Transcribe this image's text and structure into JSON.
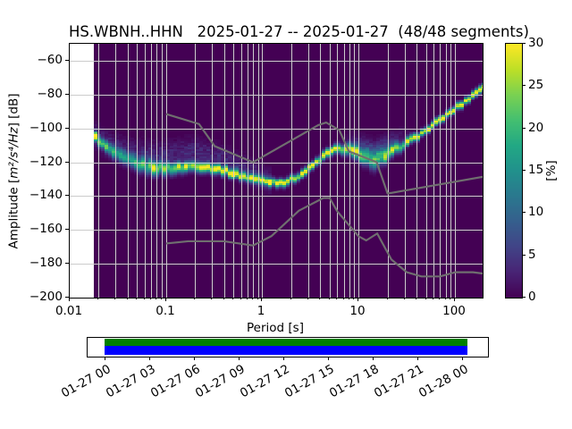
{
  "title": "HS.WBNH..HHN   2025-01-27 -- 2025-01-27  (48/48 segments)",
  "axes": {
    "xlabel": "Period [s]",
    "ylabel_pre": "Amplitude [",
    "ylabel_math": "m²/s⁴/Hz",
    "ylabel_post": "] [dB]",
    "ylabel_full": "Amplitude [m²/s⁴/Hz] [dB]",
    "x_ticks": [
      {
        "label": "0.01",
        "period_s": 0.01
      },
      {
        "label": "0.1",
        "period_s": 0.1
      },
      {
        "label": "1",
        "period_s": 1
      },
      {
        "label": "10",
        "period_s": 10
      },
      {
        "label": "100",
        "period_s": 100
      }
    ],
    "y_ticks": [
      {
        "label": "−60",
        "db": -60
      },
      {
        "label": "−80",
        "db": -80
      },
      {
        "label": "−100",
        "db": -100
      },
      {
        "label": "−120",
        "db": -120
      },
      {
        "label": "−140",
        "db": -140
      },
      {
        "label": "−160",
        "db": -160
      },
      {
        "label": "−180",
        "db": -180
      },
      {
        "label": "−200",
        "db": -200
      }
    ]
  },
  "colorbar": {
    "label": "[%]",
    "min": 0,
    "max": 30,
    "ticks": [
      {
        "label": "0",
        "value": 0
      },
      {
        "label": "5",
        "value": 5
      },
      {
        "label": "10",
        "value": 10
      },
      {
        "label": "15",
        "value": 15
      },
      {
        "label": "20",
        "value": 20
      },
      {
        "label": "25",
        "value": 25
      },
      {
        "label": "30",
        "value": 30
      }
    ]
  },
  "timeline": {
    "tick_labels": [
      "01-27 00",
      "01-27 03",
      "01-27 06",
      "01-27 09",
      "01-27 12",
      "01-27 15",
      "01-27 18",
      "01-27 21",
      "01-28 00"
    ],
    "data_bar_color_top": "#008000",
    "data_bar_color_bottom": "#0000ff"
  },
  "colors": {
    "background": "#ffffff",
    "hist_background": "#440154",
    "grid": "#cccccc",
    "noise_model_line": "#6f6f6f",
    "spine": "#000000",
    "viridis_stops": [
      "#440154",
      "#482475",
      "#414487",
      "#355f8d",
      "#2a788e",
      "#21918c",
      "#22a884",
      "#44bf70",
      "#7ad151",
      "#bddf26",
      "#fde725"
    ]
  },
  "chart_data": {
    "type": "heatmap",
    "title": "HS.WBNH..HHN   2025-01-27 -- 2025-01-27  (48/48 segments)",
    "xlabel": "Period [s]",
    "ylabel": "Amplitude [m²/s⁴/Hz] [dB]",
    "colorbar_label": "[%]",
    "x_axis": {
      "scale": "log",
      "range_s": [
        0.01,
        194
      ],
      "grid": true
    },
    "y_axis": {
      "range_db": [
        -200,
        -50
      ],
      "tick_step": 20,
      "grid": true
    },
    "colorbar_range_percent": [
      0,
      30
    ],
    "histogram": {
      "period_min_s": 0.0178,
      "period_max_s": 194,
      "period_bin_octaves": 0.125,
      "db_bin": 1,
      "mode_curve_period_db": [
        [
          0.018,
          -104.5
        ],
        [
          0.022,
          -109.5
        ],
        [
          0.026,
          -112.5
        ],
        [
          0.031,
          -115.5
        ],
        [
          0.039,
          -118.5
        ],
        [
          0.048,
          -120.5
        ],
        [
          0.063,
          -122.5
        ],
        [
          0.089,
          -123.5
        ],
        [
          0.126,
          -123.5
        ],
        [
          0.2,
          -122.0
        ],
        [
          0.3,
          -123.5
        ],
        [
          0.38,
          -124.5
        ],
        [
          0.56,
          -127.5
        ],
        [
          0.78,
          -129.5
        ],
        [
          1.12,
          -131.5
        ],
        [
          1.6,
          -132.0
        ],
        [
          2.1,
          -130.0
        ],
        [
          2.8,
          -125.5
        ],
        [
          3.8,
          -119.5
        ],
        [
          4.8,
          -114.5
        ],
        [
          6.0,
          -112.0
        ],
        [
          7.9,
          -112.5
        ],
        [
          10.0,
          -115.0
        ],
        [
          12.6,
          -118.0
        ],
        [
          14.8,
          -120.0
        ],
        [
          19.1,
          -116.5
        ],
        [
          23.4,
          -113.0
        ],
        [
          31.0,
          -108.5
        ],
        [
          41.7,
          -104.3
        ],
        [
          55.0,
          -99.8
        ],
        [
          72.4,
          -94.5
        ],
        [
          97.7,
          -89.2
        ],
        [
          128.8,
          -83.9
        ],
        [
          158.5,
          -79.5
        ],
        [
          195.0,
          -75.5
        ]
      ],
      "peak_percent_period": [
        [
          0.018,
          22
        ],
        [
          0.025,
          18
        ],
        [
          0.035,
          15
        ],
        [
          0.05,
          18
        ],
        [
          0.07,
          22
        ],
        [
          0.1,
          20
        ],
        [
          0.16,
          28
        ],
        [
          0.25,
          26
        ],
        [
          0.35,
          28
        ],
        [
          0.5,
          30
        ],
        [
          1.0,
          30
        ],
        [
          2.0,
          30
        ],
        [
          4.0,
          29
        ],
        [
          6.3,
          28
        ],
        [
          10,
          22
        ],
        [
          12.6,
          18
        ],
        [
          15.8,
          17
        ],
        [
          20,
          22
        ],
        [
          28,
          26
        ],
        [
          40,
          29
        ],
        [
          195,
          29
        ]
      ],
      "spread_sigma_db_period": [
        [
          0.018,
          1.8
        ],
        [
          0.032,
          2.5
        ],
        [
          0.063,
          2.8
        ],
        [
          0.126,
          2.2
        ],
        [
          0.32,
          1.8
        ],
        [
          1.0,
          1.6
        ],
        [
          3.2,
          1.5
        ],
        [
          6.3,
          1.8
        ],
        [
          10,
          2.8
        ],
        [
          15.8,
          3.2
        ],
        [
          22.4,
          2.2
        ],
        [
          40,
          1.4
        ],
        [
          195,
          1.4
        ]
      ]
    },
    "noise_models": {
      "NHNM_period_db": [
        [
          0.1,
          -91.5
        ],
        [
          0.22,
          -97.4
        ],
        [
          0.32,
          -110.5
        ],
        [
          0.8,
          -120.0
        ],
        [
          3.8,
          -98.1
        ],
        [
          4.6,
          -96.5
        ],
        [
          6.3,
          -101.0
        ],
        [
          7.9,
          -113.5
        ],
        [
          15.4,
          -120.0
        ],
        [
          20.0,
          -138.5
        ],
        [
          354.8,
          -126.0
        ]
      ],
      "NLNM_period_db": [
        [
          0.1,
          -168.0
        ],
        [
          0.17,
          -166.7
        ],
        [
          0.4,
          -166.7
        ],
        [
          0.8,
          -169.2
        ],
        [
          1.24,
          -163.7
        ],
        [
          2.4,
          -148.6
        ],
        [
          4.3,
          -141.1
        ],
        [
          5.0,
          -141.1
        ],
        [
          6.0,
          -149.0
        ],
        [
          10.0,
          -163.8
        ],
        [
          12.0,
          -166.2
        ],
        [
          15.6,
          -162.1
        ],
        [
          21.9,
          -177.5
        ],
        [
          31.6,
          -185.0
        ],
        [
          45.0,
          -187.5
        ],
        [
          70.0,
          -187.5
        ],
        [
          101.0,
          -185.0
        ],
        [
          154.0,
          -185.0
        ],
        [
          328.0,
          -187.5
        ]
      ]
    },
    "timeline": {
      "tick_labels": [
        "01-27 00",
        "01-27 03",
        "01-27 06",
        "01-27 09",
        "01-27 12",
        "01-27 15",
        "01-27 18",
        "01-27 21",
        "01-28 00"
      ],
      "coverage": "full day, 48/48 segments"
    }
  }
}
